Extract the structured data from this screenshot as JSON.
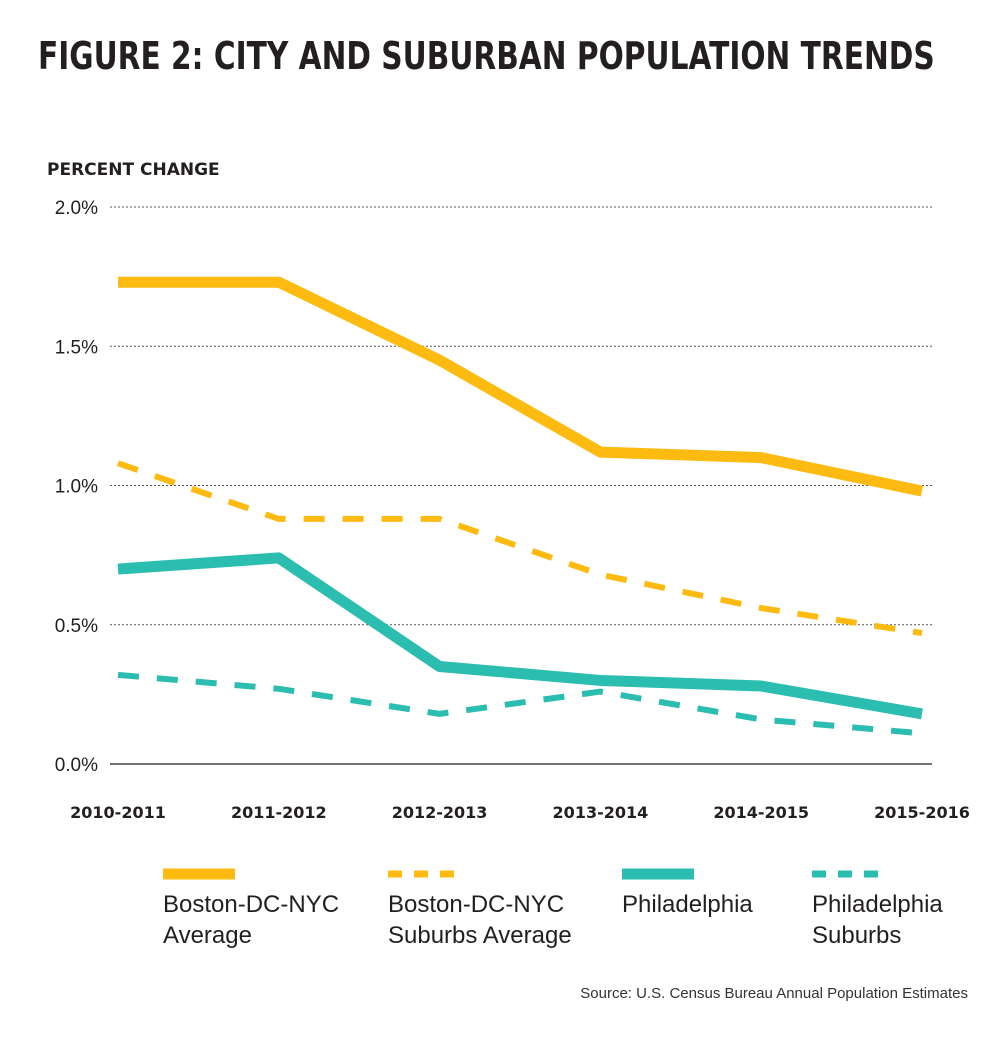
{
  "chart_data": {
    "type": "line",
    "title": "FIGURE 2: CITY AND SUBURBAN POPULATION TRENDS",
    "ylabel": "PERCENT CHANGE",
    "xlabel": "",
    "categories": [
      "2010-2011",
      "2011-2012",
      "2012-2013",
      "2013-2014",
      "2014-2015",
      "2015-2016"
    ],
    "ylim": [
      0,
      2.0
    ],
    "yticks": [
      {
        "value": 0.0,
        "label": "0.0%"
      },
      {
        "value": 0.5,
        "label": "0.5%"
      },
      {
        "value": 1.0,
        "label": "1.0%"
      },
      {
        "value": 1.5,
        "label": "1.5%"
      },
      {
        "value": 2.0,
        "label": "2.0%"
      }
    ],
    "grid": "horizontal dotted",
    "legend_position": "bottom",
    "series": [
      {
        "name": "Boston-DC-NYC Average",
        "legend_lines": [
          "Boston-DC-NYC",
          "Average"
        ],
        "values": [
          1.73,
          1.73,
          1.45,
          1.12,
          1.1,
          0.98
        ],
        "color": "#fdbb11",
        "style": "solid"
      },
      {
        "name": "Boston-DC-NYC Suburbs Average",
        "legend_lines": [
          "Boston-DC-NYC",
          "Suburbs Average"
        ],
        "values": [
          1.08,
          0.88,
          0.88,
          0.68,
          0.56,
          0.47
        ],
        "color": "#fdbb11",
        "style": "dashed"
      },
      {
        "name": "Philadelphia",
        "legend_lines": [
          "Philadelphia"
        ],
        "values": [
          0.7,
          0.74,
          0.35,
          0.3,
          0.28,
          0.18
        ],
        "color": "#2bbdb0",
        "style": "solid"
      },
      {
        "name": "Philadelphia Suburbs",
        "legend_lines": [
          "Philadelphia",
          "Suburbs"
        ],
        "values": [
          0.32,
          0.27,
          0.18,
          0.26,
          0.16,
          0.11
        ],
        "color": "#2bbdb0",
        "style": "dashed"
      }
    ],
    "source": "Source: U.S. Census Bureau Annual Population Estimates"
  }
}
